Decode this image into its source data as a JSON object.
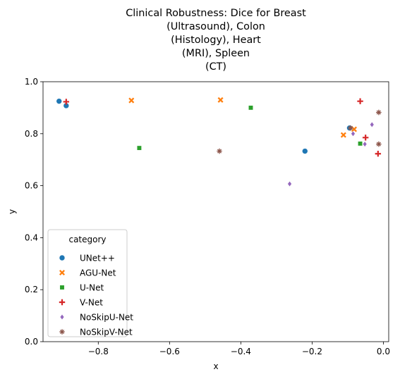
{
  "chart_data": {
    "type": "scatter",
    "title_lines": [
      "Clinical Robustness: Dice for Breast",
      "(Ultrasound), Colon",
      "(Histology), Heart",
      "(MRI), Spleen",
      "(CT)"
    ],
    "xlabel": "x",
    "ylabel": "y",
    "xlim": [
      -0.955,
      0.015
    ],
    "ylim": [
      0.0,
      1.0
    ],
    "xticks": [
      -0.8,
      -0.6,
      -0.4,
      -0.2,
      0.0
    ],
    "xtick_labels": [
      "−0.8",
      "−0.6",
      "−0.4",
      "−0.2",
      "0.0"
    ],
    "yticks": [
      0.0,
      0.2,
      0.4,
      0.6,
      0.8,
      1.0
    ],
    "ytick_labels": [
      "0.0",
      "0.2",
      "0.4",
      "0.6",
      "0.8",
      "1.0"
    ],
    "grid": false,
    "legend": {
      "title": "category",
      "placement": "lower-left"
    },
    "series": [
      {
        "name": "UNet++",
        "marker": "circle",
        "color": "#1f77b4",
        "points": [
          [
            -0.91,
            0.925
          ],
          [
            -0.89,
            0.908
          ],
          [
            -0.22,
            0.733
          ],
          [
            -0.095,
            0.822
          ]
        ]
      },
      {
        "name": "AGU-Net",
        "marker": "x",
        "color": "#ff7f0e",
        "points": [
          [
            -0.707,
            0.928
          ],
          [
            -0.457,
            0.93
          ],
          [
            -0.112,
            0.795
          ],
          [
            -0.082,
            0.817
          ]
        ]
      },
      {
        "name": "U-Net",
        "marker": "square",
        "color": "#2ca02c",
        "points": [
          [
            -0.372,
            0.9
          ],
          [
            -0.685,
            0.745
          ],
          [
            -0.065,
            0.762
          ]
        ]
      },
      {
        "name": "V-Net",
        "marker": "plus",
        "color": "#d62728",
        "points": [
          [
            -0.89,
            0.923
          ],
          [
            -0.065,
            0.925
          ],
          [
            -0.05,
            0.785
          ],
          [
            -0.015,
            0.723
          ]
        ]
      },
      {
        "name": "NoSkipU-Net",
        "marker": "diamond",
        "color": "#9467bd",
        "points": [
          [
            -0.263,
            0.607
          ],
          [
            -0.085,
            0.8
          ],
          [
            -0.052,
            0.76
          ],
          [
            -0.032,
            0.835
          ]
        ]
      },
      {
        "name": "NoSkipV-Net",
        "marker": "star",
        "color": "#8c564b",
        "points": [
          [
            -0.46,
            0.733
          ],
          [
            -0.013,
            0.882
          ],
          [
            -0.013,
            0.76
          ],
          [
            -0.092,
            0.822
          ]
        ]
      }
    ]
  }
}
